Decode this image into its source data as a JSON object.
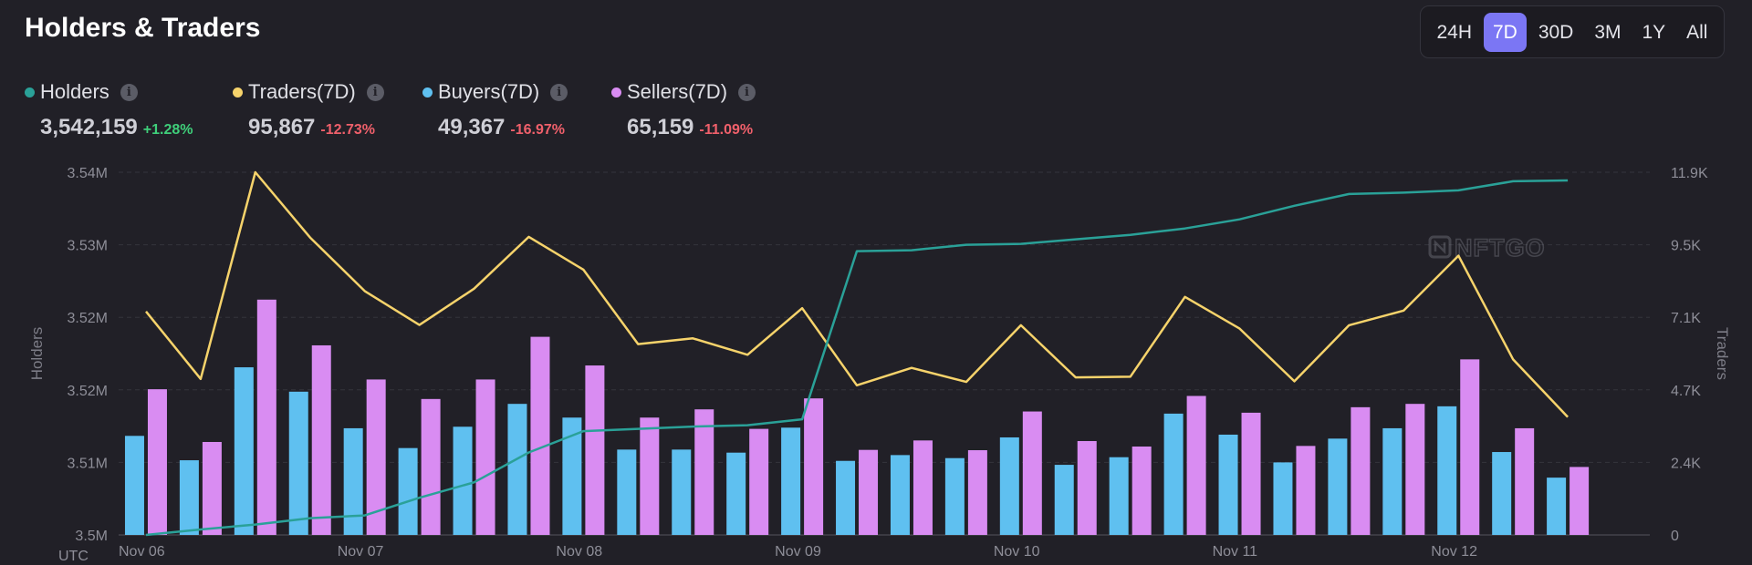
{
  "header": {
    "title": "Holders & Traders"
  },
  "range": {
    "options": [
      "24H",
      "7D",
      "30D",
      "3M",
      "1Y",
      "All"
    ],
    "selected": "7D"
  },
  "metrics": [
    {
      "label": "Holders",
      "value": "3,542,159",
      "change": "+1.28%",
      "color": "#2aa198",
      "trend": "up"
    },
    {
      "label": "Traders(7D)",
      "value": "95,867",
      "change": "-12.73%",
      "color": "#f6d36b",
      "trend": "down"
    },
    {
      "label": "Buyers(7D)",
      "value": "49,367",
      "change": "-16.97%",
      "color": "#5fc0f0",
      "trend": "down"
    },
    {
      "label": "Sellers(7D)",
      "value": "65,159",
      "change": "-11.09%",
      "color": "#d98cf2",
      "trend": "down"
    }
  ],
  "info_glyph": "i",
  "watermark": "NFTGO",
  "chart_data": {
    "type": "bar",
    "title": "Holders & Traders",
    "xlabel": "UTC",
    "ylabel": "Holders",
    "y2label": "Traders",
    "x_ticks": [
      "Nov 06",
      "Nov 07",
      "Nov 08",
      "Nov 09",
      "Nov 10",
      "Nov 11",
      "Nov 12"
    ],
    "y_ticks": [
      "3.5M",
      "3.51M",
      "3.52M",
      "3.52M",
      "3.53M",
      "3.54M"
    ],
    "y2_ticks": [
      "0",
      "2.4K",
      "4.7K",
      "7.1K",
      "9.5K",
      "11.9K"
    ],
    "ylim": [
      3500000,
      3540000
    ],
    "y2lim": [
      0,
      11900
    ],
    "grid": true,
    "n_points": 28,
    "series": [
      {
        "name": "Buyers(7D)",
        "kind": "bar",
        "axis": "right",
        "color": "#5fc0f0",
        "values": [
          3250,
          2450,
          5500,
          4700,
          3500,
          2850,
          3550,
          4300,
          3850,
          2800,
          2800,
          2700,
          3520,
          2430,
          2620,
          2520,
          3200,
          2300,
          2550,
          3980,
          3290,
          2380,
          3160,
          3500,
          4220,
          2720,
          1880,
          null
        ]
      },
      {
        "name": "Sellers(7D)",
        "kind": "bar",
        "axis": "right",
        "color": "#d98cf2",
        "values": [
          4780,
          3050,
          7720,
          6220,
          5100,
          4460,
          5100,
          6500,
          5560,
          3850,
          4120,
          3480,
          4480,
          2790,
          3100,
          2780,
          4050,
          3080,
          2900,
          4560,
          4010,
          2920,
          4190,
          4300,
          5760,
          3500,
          2230,
          null
        ]
      },
      {
        "name": "Traders(7D)",
        "kind": "line",
        "axis": "right",
        "color": "#f6d36b",
        "values": [
          7330,
          5120,
          11900,
          9760,
          8000,
          6890,
          8080,
          9780,
          8700,
          6260,
          6450,
          5910,
          7440,
          4910,
          5480,
          5020,
          6880,
          5170,
          5190,
          7810,
          6770,
          5040,
          6880,
          7360,
          9160,
          5760,
          3870,
          null
        ]
      },
      {
        "name": "Holders",
        "kind": "line",
        "axis": "left",
        "color": "#2aa198",
        "values": [
          3500000,
          3500600,
          3501150,
          3501850,
          3502150,
          3504100,
          3505800,
          3509100,
          3511450,
          3511700,
          3511950,
          3512100,
          3512750,
          3531300,
          3531400,
          3532000,
          3532100,
          3532600,
          3533100,
          3533800,
          3534800,
          3536300,
          3537600,
          3537750,
          3538000,
          3539000,
          3539100,
          null
        ]
      }
    ]
  }
}
